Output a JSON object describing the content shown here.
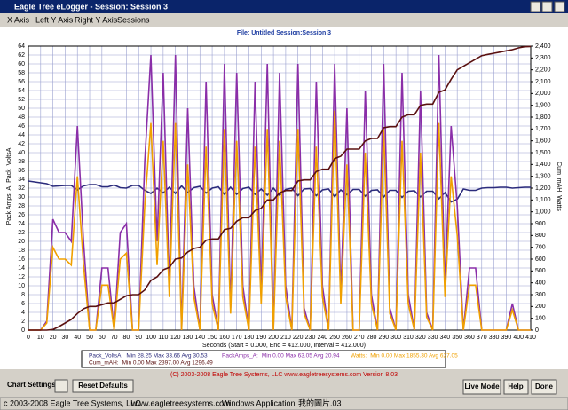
{
  "window": {
    "title": "Eagle Tree eLogger - Session: Session 3",
    "menu": [
      "X Axis",
      "Left Y Axis",
      "Right Y Axis",
      "Sessions"
    ],
    "copyright": "(C) 2003-2008 Eagle Tree Systems, LLC    www.eagletreesystems.com    Version 8.03",
    "buttons": {
      "chart_settings": "Chart Settings:",
      "reset": "Reset Defaults",
      "live": "Live Mode",
      "help": "Help",
      "done": "Done"
    }
  },
  "status_bar": [
    "c 2003-2008 Eagle Tree Systems, LLC",
    "www.eagletreesystems.com",
    "Windows Application",
    "我的圖片",
    ".03"
  ],
  "chart_data": {
    "type": "line",
    "title": "File: Untitled   Session:Session 3",
    "x_label": "Seconds (Start = 0.000, End = 412.000, Interval = 412.000)",
    "y_label": "Pack Amps_A, Pack_VoltsA",
    "y2_label": "Cum_mAH, Watts",
    "grid": true,
    "x": [
      0,
      5,
      10,
      15,
      20,
      25,
      30,
      35,
      40,
      45,
      50,
      55,
      60,
      65,
      70,
      75,
      80,
      85,
      90,
      95,
      100,
      105,
      110,
      115,
      120,
      125,
      130,
      135,
      140,
      145,
      150,
      155,
      160,
      165,
      170,
      175,
      180,
      185,
      190,
      195,
      200,
      205,
      210,
      215,
      220,
      225,
      230,
      235,
      240,
      245,
      250,
      255,
      260,
      265,
      270,
      275,
      280,
      285,
      290,
      295,
      300,
      305,
      310,
      315,
      320,
      325,
      330,
      335,
      340,
      345,
      350,
      355,
      360,
      365,
      370,
      375,
      380,
      385,
      390,
      395,
      400,
      405,
      410
    ],
    "series": [
      {
        "name": "Pack_VoltsA:",
        "stats": "Min 28.25   Max 33.66   Avg 30.53",
        "color": "#2b2b7c",
        "axis": "y",
        "values": [
          33.6,
          33.4,
          33.2,
          33.0,
          32.4,
          32.5,
          32.6,
          32.6,
          31.6,
          32.5,
          32.8,
          32.8,
          32.3,
          32.3,
          32.7,
          32.1,
          32.0,
          32.6,
          32.6,
          31.5,
          30.8,
          32.0,
          30.9,
          32.2,
          30.8,
          32.5,
          31.0,
          32.1,
          32.4,
          30.9,
          32.0,
          32.3,
          30.6,
          32.2,
          30.6,
          31.9,
          32.2,
          30.6,
          31.8,
          30.4,
          32.0,
          30.4,
          31.7,
          32.0,
          30.3,
          31.8,
          31.9,
          30.3,
          31.6,
          31.8,
          30.1,
          31.6,
          30.5,
          31.7,
          31.7,
          30.2,
          31.5,
          31.6,
          30.0,
          31.5,
          31.5,
          29.9,
          31.3,
          31.4,
          30.0,
          31.3,
          31.3,
          29.6,
          31.0,
          28.9,
          29.5,
          31.8,
          31.5,
          31.5,
          32.0,
          32.1,
          32.1,
          32.2,
          32.2,
          32.0,
          32.1,
          32.2,
          32.2
        ]
      },
      {
        "name": "PackAmps_A:",
        "stats": "Min 0.00   Max 63.05   Avg 20.94",
        "color": "#8a2ea8",
        "axis": "y",
        "values": [
          0,
          0,
          0,
          2,
          25,
          22,
          22,
          20,
          46,
          20,
          0,
          0,
          14,
          14,
          0,
          22,
          24,
          0,
          0,
          38,
          62,
          20,
          58,
          10,
          62,
          0,
          50,
          10,
          0,
          56,
          8,
          0,
          60,
          5,
          58,
          10,
          0,
          56,
          8,
          60,
          0,
          58,
          10,
          0,
          60,
          5,
          0,
          56,
          10,
          0,
          60,
          8,
          50,
          0,
          0,
          54,
          8,
          0,
          60,
          5,
          0,
          58,
          8,
          0,
          54,
          4,
          0,
          62,
          10,
          46,
          28,
          0,
          14,
          14,
          0,
          0,
          0,
          0,
          0,
          6,
          0,
          0,
          0
        ]
      },
      {
        "name": "Watts:",
        "stats": "Min 0.00   Max 1855.30   Avg 627.05",
        "color": "#f0a000",
        "axis": "y2",
        "values": [
          0,
          0,
          0,
          60,
          700,
          600,
          600,
          550,
          1300,
          550,
          0,
          0,
          380,
          380,
          0,
          600,
          650,
          0,
          0,
          1050,
          1750,
          550,
          1600,
          280,
          1750,
          0,
          1400,
          280,
          0,
          1550,
          220,
          0,
          1700,
          140,
          1600,
          280,
          0,
          1550,
          220,
          1700,
          0,
          1600,
          280,
          0,
          1700,
          140,
          0,
          1550,
          280,
          0,
          1855,
          220,
          1400,
          0,
          0,
          1500,
          220,
          0,
          1700,
          140,
          0,
          1600,
          220,
          0,
          1500,
          110,
          0,
          1750,
          280,
          1300,
          800,
          0,
          380,
          380,
          0,
          0,
          0,
          0,
          0,
          170,
          0,
          0,
          0
        ]
      },
      {
        "name": "Cum_mAH:",
        "stats": "Min 0.00   Max 2397.00   Avg 1296.49",
        "color": "#5a1010",
        "axis": "y2",
        "values": [
          0,
          0,
          0,
          0,
          5,
          30,
          60,
          90,
          140,
          180,
          200,
          200,
          215,
          230,
          230,
          260,
          290,
          300,
          300,
          340,
          420,
          450,
          510,
          530,
          600,
          610,
          660,
          690,
          700,
          760,
          770,
          770,
          850,
          860,
          920,
          950,
          950,
          1010,
          1030,
          1100,
          1100,
          1160,
          1180,
          1180,
          1260,
          1270,
          1270,
          1340,
          1360,
          1360,
          1450,
          1470,
          1530,
          1530,
          1530,
          1600,
          1620,
          1620,
          1710,
          1720,
          1720,
          1800,
          1820,
          1820,
          1900,
          1910,
          1910,
          2010,
          2030,
          2120,
          2200,
          2230,
          2260,
          2290,
          2320,
          2330,
          2340,
          2350,
          2360,
          2370,
          2385,
          2395,
          2397
        ]
      }
    ],
    "xlim": [
      0,
      410
    ],
    "ylim": [
      0,
      64
    ],
    "y2lim": [
      0,
      2400
    ],
    "xticks": [
      0,
      10,
      20,
      30,
      40,
      50,
      60,
      70,
      80,
      90,
      100,
      110,
      120,
      130,
      140,
      150,
      160,
      170,
      180,
      190,
      200,
      210,
      220,
      230,
      240,
      250,
      260,
      270,
      280,
      290,
      300,
      310,
      320,
      330,
      340,
      350,
      360,
      370,
      380,
      390,
      400,
      410
    ],
    "yticks": [
      0,
      2,
      4,
      6,
      8,
      10,
      12,
      14,
      16,
      18,
      20,
      22,
      24,
      26,
      28,
      30,
      32,
      34,
      36,
      38,
      40,
      42,
      44,
      46,
      48,
      50,
      52,
      54,
      56,
      58,
      60,
      62,
      64
    ],
    "y2ticks": [
      0,
      100,
      200,
      300,
      400,
      500,
      600,
      700,
      800,
      900,
      {
        "value": 1000,
        "label": "1,000"
      },
      {
        "value": 1100,
        "label": "1,100"
      },
      {
        "value": 1200,
        "label": "1,200"
      },
      {
        "value": 1300,
        "label": "1,300"
      },
      {
        "value": 1400,
        "label": "1,400"
      },
      {
        "value": 1500,
        "label": "1,500"
      },
      {
        "value": 1600,
        "label": "1,600"
      },
      {
        "value": 1700,
        "label": "1,700"
      },
      {
        "value": 1800,
        "label": "1,800"
      },
      {
        "value": 1900,
        "label": "1,900"
      },
      {
        "value": 2000,
        "label": "2,000"
      },
      {
        "value": 2100,
        "label": "2,100"
      },
      {
        "value": 2200,
        "label": "2,200"
      },
      {
        "value": 2300,
        "label": "2,300"
      },
      {
        "value": 2400,
        "label": "2,400"
      }
    ]
  }
}
